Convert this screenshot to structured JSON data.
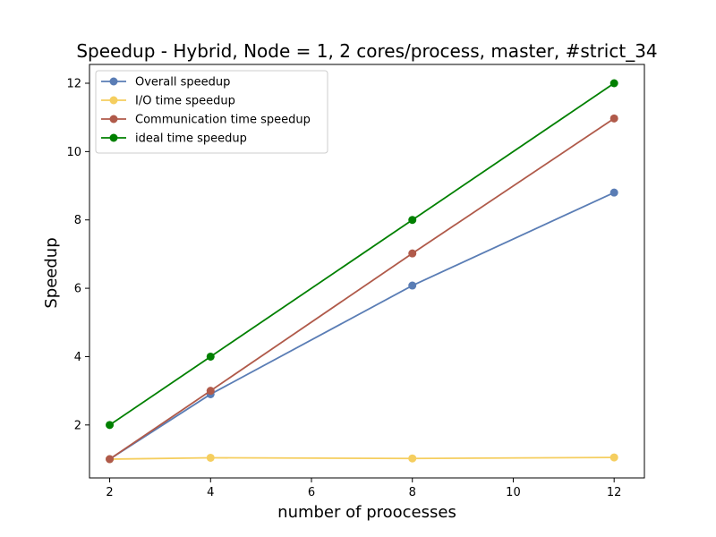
{
  "chart_data": {
    "type": "line",
    "title": "Speedup - Hybrid, Node = 1, 2 cores/process, master, #strict_34",
    "xlabel": "number of proocesses",
    "ylabel": "Speedup",
    "x": [
      2,
      4,
      8,
      12
    ],
    "xlim": [
      1.6,
      12.6
    ],
    "ylim": [
      0.45,
      12.55
    ],
    "xticks": [
      2,
      4,
      6,
      8,
      10,
      12
    ],
    "yticks": [
      2,
      4,
      6,
      8,
      10,
      12
    ],
    "grid": false,
    "legend_position": "top-left",
    "series": [
      {
        "name": "Overall speedup",
        "color": "#5a7db5",
        "values": [
          1.0,
          2.9,
          6.08,
          8.8
        ]
      },
      {
        "name": "I/O time speedup",
        "color": "#f5ce5f",
        "values": [
          1.0,
          1.04,
          1.02,
          1.05
        ]
      },
      {
        "name": "Communication time speedup",
        "color": "#b05a4a",
        "values": [
          1.0,
          3.0,
          7.02,
          10.97
        ]
      },
      {
        "name": "ideal time speedup",
        "color": "#008000",
        "values": [
          2.0,
          4.0,
          8.0,
          12.0
        ]
      }
    ]
  }
}
